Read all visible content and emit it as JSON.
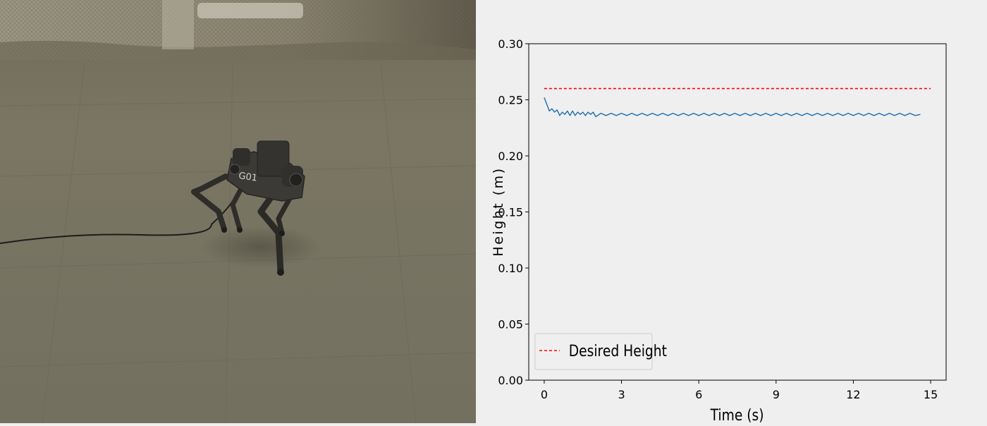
{
  "photo": {
    "subject_icon": "quadruped-robot-icon",
    "robot_label": "G01",
    "colors": {
      "floor": "#77735f",
      "wall": "#8b8570",
      "robot": "#3a3935",
      "cable": "#1c1c1a"
    }
  },
  "chart_data": {
    "type": "line",
    "title": "",
    "xlabel": "Time (s)",
    "ylabel": "Height (m)",
    "xlim": [
      -0.6,
      15.6
    ],
    "ylim": [
      0.0,
      0.3
    ],
    "xticks": [
      0,
      3,
      6,
      9,
      12,
      15
    ],
    "xtick_labels": [
      "0",
      "3",
      "6",
      "9",
      "12",
      "15"
    ],
    "yticks": [
      0.0,
      0.05,
      0.1,
      0.15,
      0.2,
      0.25,
      0.3
    ],
    "ytick_labels": [
      "0.00",
      "0.05",
      "0.10",
      "0.15",
      "0.20",
      "0.25",
      "0.30"
    ],
    "grid": false,
    "legend": {
      "placement": "lower-left",
      "entries": [
        "Desired Height"
      ]
    },
    "series": [
      {
        "name": "Desired Height",
        "style": "dashed",
        "color": "#ff0000",
        "x": [
          0,
          15
        ],
        "y": [
          0.26,
          0.26
        ]
      },
      {
        "name": "",
        "style": "solid",
        "color": "#1f6eb0",
        "x": [
          0.0,
          0.1,
          0.2,
          0.3,
          0.4,
          0.5,
          0.6,
          0.7,
          0.8,
          0.9,
          1.0,
          1.1,
          1.2,
          1.3,
          1.4,
          1.5,
          1.6,
          1.7,
          1.8,
          1.9,
          2.0,
          2.2,
          2.4,
          2.6,
          2.8,
          3.0,
          3.2,
          3.4,
          3.6,
          3.8,
          4.0,
          4.2,
          4.4,
          4.6,
          4.8,
          5.0,
          5.2,
          5.4,
          5.6,
          5.8,
          6.0,
          6.2,
          6.4,
          6.6,
          6.8,
          7.0,
          7.2,
          7.4,
          7.6,
          7.8,
          8.0,
          8.2,
          8.4,
          8.6,
          8.8,
          9.0,
          9.2,
          9.4,
          9.6,
          9.8,
          10.0,
          10.2,
          10.4,
          10.6,
          10.8,
          11.0,
          11.2,
          11.4,
          11.6,
          11.8,
          12.0,
          12.2,
          12.4,
          12.6,
          12.8,
          13.0,
          13.2,
          13.4,
          13.6,
          13.8,
          14.0,
          14.2,
          14.4,
          14.6
        ],
        "y": [
          0.252,
          0.246,
          0.24,
          0.242,
          0.239,
          0.241,
          0.236,
          0.239,
          0.237,
          0.24,
          0.236,
          0.24,
          0.236,
          0.239,
          0.237,
          0.239,
          0.236,
          0.239,
          0.237,
          0.239,
          0.235,
          0.238,
          0.236,
          0.238,
          0.236,
          0.238,
          0.236,
          0.238,
          0.236,
          0.238,
          0.236,
          0.238,
          0.236,
          0.238,
          0.236,
          0.238,
          0.236,
          0.238,
          0.236,
          0.238,
          0.236,
          0.238,
          0.236,
          0.238,
          0.236,
          0.238,
          0.236,
          0.238,
          0.236,
          0.238,
          0.236,
          0.238,
          0.236,
          0.238,
          0.236,
          0.238,
          0.236,
          0.238,
          0.236,
          0.238,
          0.236,
          0.238,
          0.236,
          0.238,
          0.236,
          0.238,
          0.236,
          0.238,
          0.236,
          0.238,
          0.236,
          0.238,
          0.236,
          0.238,
          0.236,
          0.238,
          0.236,
          0.238,
          0.236,
          0.238,
          0.236,
          0.238,
          0.236,
          0.237
        ]
      }
    ]
  }
}
